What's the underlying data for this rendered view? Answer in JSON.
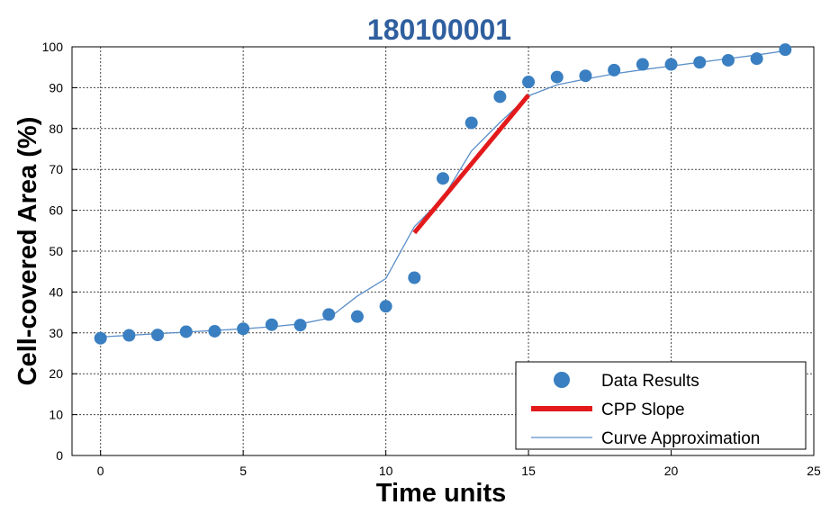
{
  "chart_data": {
    "type": "scatter",
    "title": "180100001",
    "xlabel": "Time units",
    "ylabel": "Cell-covered Area (%)",
    "xlim": [
      -1,
      25
    ],
    "ylim": [
      0,
      100
    ],
    "x_ticks": [
      0,
      5,
      10,
      15,
      20,
      25
    ],
    "y_ticks": [
      0,
      10,
      20,
      30,
      40,
      50,
      60,
      70,
      80,
      90,
      100
    ],
    "grid": true,
    "legend_position": "bottom-right",
    "colors": {
      "data": "#3a7fc1",
      "slope": "#e31a1c",
      "curve": "#5b8fc9",
      "title": "#2f5f9e"
    },
    "series": [
      {
        "name": "Data Results",
        "style": "markers",
        "x": [
          0,
          1,
          2,
          3,
          4,
          5,
          6,
          7,
          8,
          9,
          10,
          11,
          12,
          13,
          14,
          15,
          16,
          17,
          18,
          19,
          20,
          21,
          22,
          23,
          24
        ],
        "y": [
          28.7,
          29.4,
          29.5,
          30.3,
          30.4,
          31.0,
          32.0,
          31.9,
          34.5,
          34.0,
          36.5,
          43.5,
          67.8,
          81.4,
          87.8,
          91.4,
          92.6,
          92.9,
          94.3,
          95.7,
          95.7,
          96.2,
          96.7,
          97.1,
          99.3
        ]
      },
      {
        "name": "CPP Slope",
        "style": "thick-line",
        "x": [
          11,
          15
        ],
        "y": [
          54.5,
          88.2
        ]
      },
      {
        "name": "Curve Approximation",
        "style": "thin-line",
        "x": [
          0,
          1,
          2,
          3,
          4,
          5,
          6,
          7,
          8,
          9,
          10,
          11,
          12,
          13,
          14,
          15,
          16,
          17,
          18,
          19,
          20,
          21,
          22,
          23,
          24
        ],
        "y": [
          29.0,
          29.4,
          29.8,
          30.2,
          30.6,
          31.0,
          31.5,
          32.2,
          33.6,
          39.0,
          43.3,
          56.0,
          63.0,
          74.5,
          81.5,
          88.0,
          90.7,
          92.1,
          93.4,
          94.4,
          95.3,
          96.2,
          97.1,
          98.0,
          99.0
        ]
      }
    ]
  }
}
